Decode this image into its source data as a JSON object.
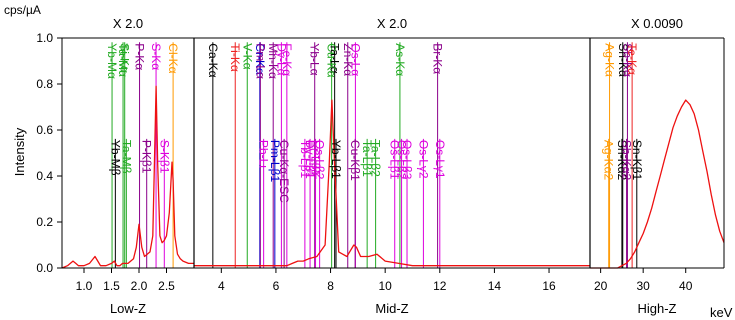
{
  "chart_data": {
    "type": "line",
    "title": "",
    "unit_label": "cps/µA",
    "ylabel": "Intensity",
    "x_unit": "keV",
    "ylim": [
      0,
      1.0
    ],
    "y_ticks": [
      "0.0",
      "0.2",
      "0.4",
      "0.6",
      "0.8",
      "1.0"
    ],
    "colors": {
      "spectrum": "#ee1111",
      "dark_red": "#8b0000",
      "black": "#000000",
      "green": "#22aa22",
      "purple": "#8b008b",
      "magenta": "#dd00dd",
      "orange": "#ff9900",
      "red": "#ee2222",
      "blue": "#0000cc",
      "olive": "#556b2f"
    },
    "panels": [
      {
        "name": "Low-Z",
        "scale": "X 2.0",
        "xlim": [
          0.6,
          3.0
        ],
        "x_ticks": [
          "1.0",
          "1.5",
          "2.0",
          "2.5"
        ],
        "x_tick_values": [
          1.0,
          1.5,
          2.0,
          2.5
        ],
        "spectrum": {
          "x": [
            0.6,
            0.7,
            0.8,
            0.85,
            0.9,
            1.0,
            1.1,
            1.2,
            1.25,
            1.3,
            1.4,
            1.5,
            1.55,
            1.6,
            1.65,
            1.7,
            1.8,
            1.9,
            1.95,
            2.0,
            2.05,
            2.1,
            2.2,
            2.25,
            2.28,
            2.31,
            2.34,
            2.38,
            2.42,
            2.46,
            2.5,
            2.55,
            2.6,
            2.62,
            2.65,
            2.7,
            2.75,
            2.8,
            2.9,
            3.0
          ],
          "y": [
            0.0,
            0.01,
            0.03,
            0.02,
            0.01,
            0.01,
            0.02,
            0.05,
            0.03,
            0.01,
            0.01,
            0.02,
            0.03,
            0.01,
            0.01,
            0.02,
            0.02,
            0.04,
            0.09,
            0.19,
            0.09,
            0.05,
            0.07,
            0.14,
            0.45,
            0.79,
            0.45,
            0.14,
            0.11,
            0.12,
            0.14,
            0.24,
            0.46,
            0.38,
            0.14,
            0.06,
            0.04,
            0.03,
            0.02,
            0.02
          ]
        },
        "markers": [
          {
            "label": "Yb-Mα",
            "x": 1.51,
            "height": 0.99,
            "color": "green"
          },
          {
            "label": "Si-Kα",
            "x": 1.74,
            "height": 0.99,
            "color": "green"
          },
          {
            "label": "Ta-Mα",
            "x": 1.71,
            "height": 0.99,
            "color": "green"
          },
          {
            "label": "P-Kα",
            "x": 2.01,
            "height": 0.99,
            "color": "purple"
          },
          {
            "label": "S-Kα",
            "x": 2.31,
            "height": 0.99,
            "color": "magenta"
          },
          {
            "label": "Cl-Kα",
            "x": 2.62,
            "height": 0.99,
            "color": "orange"
          },
          {
            "label": "Yb-Mβ",
            "x": 1.57,
            "height": 0.57,
            "color": "black"
          },
          {
            "label": "Ta-Mβ",
            "x": 1.77,
            "height": 0.57,
            "color": "green"
          },
          {
            "label": "P-Kβ1",
            "x": 2.14,
            "height": 0.57,
            "color": "purple"
          },
          {
            "label": "S-Kβ1",
            "x": 2.46,
            "height": 0.57,
            "color": "magenta"
          }
        ]
      },
      {
        "name": "Mid-Z",
        "scale": "X 2.0",
        "xlim": [
          3.0,
          17.5
        ],
        "x_ticks": [
          "4",
          "6",
          "8",
          "10",
          "12",
          "14",
          "16"
        ],
        "x_tick_values": [
          4,
          6,
          8,
          10,
          12,
          14,
          16
        ],
        "spectrum": {
          "x": [
            3.0,
            4.0,
            5.0,
            6.0,
            6.4,
            6.6,
            6.8,
            7.0,
            7.2,
            7.5,
            7.8,
            7.95,
            8.05,
            8.15,
            8.3,
            8.6,
            8.85,
            8.95,
            9.1,
            9.4,
            9.7,
            10.0,
            10.5,
            11.0,
            12.0,
            13.0,
            14.0,
            15.0,
            16.0,
            17.5
          ],
          "y": [
            0.01,
            0.01,
            0.01,
            0.01,
            0.01,
            0.02,
            0.03,
            0.03,
            0.04,
            0.05,
            0.1,
            0.45,
            0.73,
            0.45,
            0.07,
            0.05,
            0.1,
            0.09,
            0.05,
            0.05,
            0.06,
            0.03,
            0.02,
            0.01,
            0.01,
            0.01,
            0.01,
            0.01,
            0.01,
            0.01
          ]
        },
        "markers": [
          {
            "label": "Ca-Kα",
            "x": 3.69,
            "height": 0.99,
            "color": "black"
          },
          {
            "label": "Ti-Kα",
            "x": 4.51,
            "height": 0.99,
            "color": "red"
          },
          {
            "label": "V-Kα",
            "x": 4.95,
            "height": 0.99,
            "color": "green"
          },
          {
            "label": "Cr-Kα",
            "x": 5.41,
            "height": 0.99,
            "color": "blue"
          },
          {
            "label": "Pm-Lα",
            "x": 5.43,
            "height": 0.99,
            "color": "purple"
          },
          {
            "label": "Mn-Kα",
            "x": 5.9,
            "height": 0.99,
            "color": "purple"
          },
          {
            "label": "Dy-Lα",
            "x": 6.2,
            "height": 0.99,
            "color": "magenta"
          },
          {
            "label": "Fe-Kα",
            "x": 6.4,
            "height": 0.99,
            "color": "magenta"
          },
          {
            "label": "Yb-Lα",
            "x": 7.42,
            "height": 0.99,
            "color": "purple"
          },
          {
            "label": "Ta-Lα",
            "x": 8.15,
            "height": 0.99,
            "color": "black"
          },
          {
            "label": "Cu-Kα",
            "x": 8.04,
            "height": 0.99,
            "color": "green"
          },
          {
            "label": "Zn-Kα",
            "x": 8.63,
            "height": 0.99,
            "color": "purple"
          },
          {
            "label": "Os-Lα",
            "x": 8.91,
            "height": 0.99,
            "color": "magenta"
          },
          {
            "label": "As-Kα",
            "x": 10.54,
            "height": 0.99,
            "color": "green"
          },
          {
            "label": "Br-Kα",
            "x": 11.92,
            "height": 0.99,
            "color": "purple"
          },
          {
            "label": "Pb-Lι",
            "x": 5.55,
            "height": 0.57,
            "color": "magenta"
          },
          {
            "label": "Pm-Lβ1",
            "x": 5.96,
            "height": 0.57,
            "color": "blue"
          },
          {
            "label": "Cu-Kα-ESC",
            "x": 6.3,
            "height": 0.57,
            "color": "purple"
          },
          {
            "label": "Tb-Lβ1",
            "x": 7.06,
            "height": 0.57,
            "color": "magenta"
          },
          {
            "label": "Dy-Lβ1",
            "x": 7.25,
            "height": 0.57,
            "color": "magenta"
          },
          {
            "label": "Er-Lβ1",
            "x": 7.45,
            "height": 0.57,
            "color": "magenta"
          },
          {
            "label": "Os-Lβ2",
            "x": 7.6,
            "height": 0.57,
            "color": "magenta"
          },
          {
            "label": "Yb-Lβ1",
            "x": 8.2,
            "height": 0.57,
            "color": "black"
          },
          {
            "label": "Cu-Kβ1",
            "x": 8.9,
            "height": 0.57,
            "color": "purple"
          },
          {
            "label": "Ta-Lβ1",
            "x": 9.34,
            "height": 0.57,
            "color": "green"
          },
          {
            "label": "Ta-Lβ2",
            "x": 9.65,
            "height": 0.57,
            "color": "green"
          },
          {
            "label": "Os-Lβ1",
            "x": 10.35,
            "height": 0.57,
            "color": "magenta"
          },
          {
            "label": "Os-Lβ2",
            "x": 10.6,
            "height": 0.57,
            "color": "magenta"
          },
          {
            "label": "Os-Lβ3",
            "x": 10.8,
            "height": 0.57,
            "color": "magenta"
          },
          {
            "label": "Os-Lγ2",
            "x": 11.4,
            "height": 0.57,
            "color": "magenta"
          },
          {
            "label": "Os-Lγ1",
            "x": 12.0,
            "height": 0.57,
            "color": "magenta"
          }
        ]
      },
      {
        "name": "High-Z",
        "scale": "X 0.0090",
        "xlim": [
          17.5,
          49
        ],
        "x_ticks": [
          "20",
          "30",
          "40"
        ],
        "x_tick_values": [
          20,
          30,
          40
        ],
        "spectrum": {
          "x": [
            17.5,
            19,
            20,
            21,
            22,
            23,
            24,
            25,
            26,
            27,
            28,
            29,
            30,
            31,
            32,
            33,
            34,
            35,
            36,
            37,
            38,
            39,
            40,
            41,
            42,
            43,
            44,
            45,
            46,
            47,
            48,
            49
          ],
          "y": [
            0.0,
            0.0,
            0.0,
            0.0,
            0.0,
            0.0,
            0.0,
            0.01,
            0.02,
            0.04,
            0.07,
            0.11,
            0.15,
            0.2,
            0.26,
            0.33,
            0.4,
            0.47,
            0.54,
            0.61,
            0.66,
            0.7,
            0.73,
            0.71,
            0.67,
            0.6,
            0.51,
            0.42,
            0.32,
            0.23,
            0.16,
            0.11
          ]
        },
        "markers": [
          {
            "label": "Ag-Kα",
            "x": 22.1,
            "height": 0.99,
            "color": "orange"
          },
          {
            "label": "Sn-Kα",
            "x": 25.2,
            "height": 0.99,
            "color": "black"
          },
          {
            "label": "Sb-Kα",
            "x": 26.3,
            "height": 0.99,
            "color": "purple"
          },
          {
            "label": "Te-Kα",
            "x": 27.4,
            "height": 0.99,
            "color": "red"
          },
          {
            "label": "Ag-Kα2",
            "x": 21.9,
            "height": 0.57,
            "color": "orange"
          },
          {
            "label": "Sn-Kα2",
            "x": 25.0,
            "height": 0.57,
            "color": "black"
          },
          {
            "label": "Sb-Kα2",
            "x": 26.1,
            "height": 0.57,
            "color": "purple"
          },
          {
            "label": "Sn-Kβ1",
            "x": 28.5,
            "height": 0.57,
            "color": "black"
          }
        ]
      }
    ]
  }
}
